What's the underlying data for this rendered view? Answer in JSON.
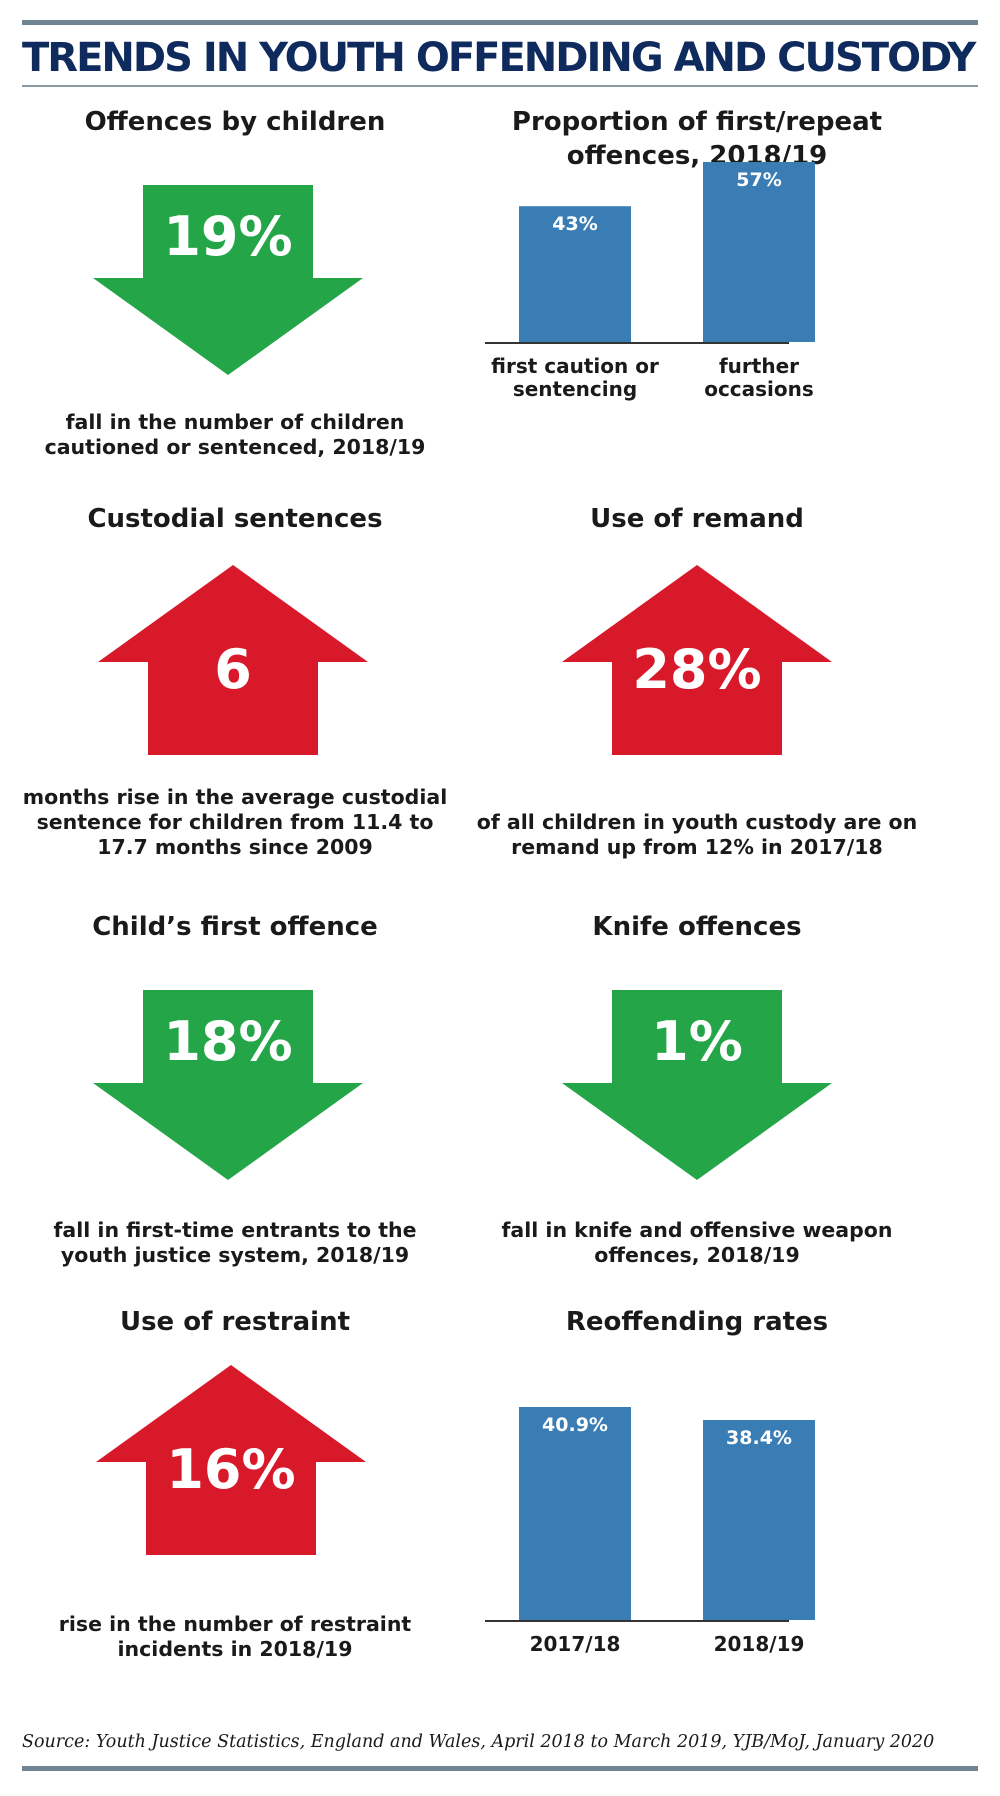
{
  "title": "TRENDS IN YOUTH OFFENDING AND CUSTODY",
  "colors": {
    "up": "#d7192a",
    "down": "#23a548",
    "bar": "#3a7db5",
    "title": "#0f2a5c",
    "rule": "#6f8593"
  },
  "panels": {
    "offences": {
      "title": "Offences by children",
      "direction": "down",
      "icon": "down-arrow-icon",
      "value": "19%",
      "caption": [
        "fall in the number of children",
        "cautioned or sentenced, 2018/19"
      ]
    },
    "custodial": {
      "title": "Custodial sentences",
      "direction": "up",
      "icon": "up-arrow-icon",
      "value": "6",
      "caption": [
        "months rise in the average custodial",
        "sentence for children from 11.4 to",
        "17.7 months since 2009"
      ]
    },
    "remand": {
      "title": "Use of remand",
      "direction": "up",
      "icon": "up-arrow-icon",
      "value": "28%",
      "caption": [
        "of all children in youth custody are on",
        "remand up from 12% in 2017/18"
      ]
    },
    "first_offence": {
      "title": "Child’s first offence",
      "direction": "down",
      "icon": "down-arrow-icon",
      "value": "18%",
      "caption": [
        "fall in first-time entrants to the",
        "youth justice system, 2018/19"
      ]
    },
    "knife": {
      "title": "Knife offences",
      "direction": "down",
      "icon": "down-arrow-icon",
      "value": "1%",
      "caption": [
        "fall in knife and offensive weapon",
        "offences, 2018/19"
      ]
    },
    "restraint": {
      "title": "Use of restraint",
      "direction": "up",
      "icon": "up-arrow-icon",
      "value": "16%",
      "caption": [
        "rise in the number of restraint",
        "incidents in 2018/19"
      ]
    }
  },
  "chart_data": [
    {
      "type": "bar",
      "title": "Proportion of first/repeat offences, 2018/19",
      "title_lines": [
        "Proportion of first/repeat",
        "offences, 2018/19"
      ],
      "categories": [
        "first caution or sentencing",
        "further occasions"
      ],
      "category_lines": [
        [
          "first caution or",
          "sentencing"
        ],
        [
          "further",
          "occasions"
        ]
      ],
      "values": [
        43,
        57
      ],
      "value_labels": [
        "43%",
        "57%"
      ],
      "ylim": [
        0,
        57
      ]
    },
    {
      "type": "bar",
      "title": "Reoffending rates",
      "title_lines": [
        "Reoffending rates"
      ],
      "categories": [
        "2017/18",
        "2018/19"
      ],
      "category_lines": [
        [
          "2017/18"
        ],
        [
          "2018/19"
        ]
      ],
      "values": [
        40.9,
        38.4
      ],
      "value_labels": [
        "40.9%",
        "38.4%"
      ],
      "ylim": [
        0,
        40.9
      ]
    }
  ],
  "source": "Source: Youth Justice Statistics, England and Wales, April 2018 to March 2019, YJB/MoJ, January 2020"
}
